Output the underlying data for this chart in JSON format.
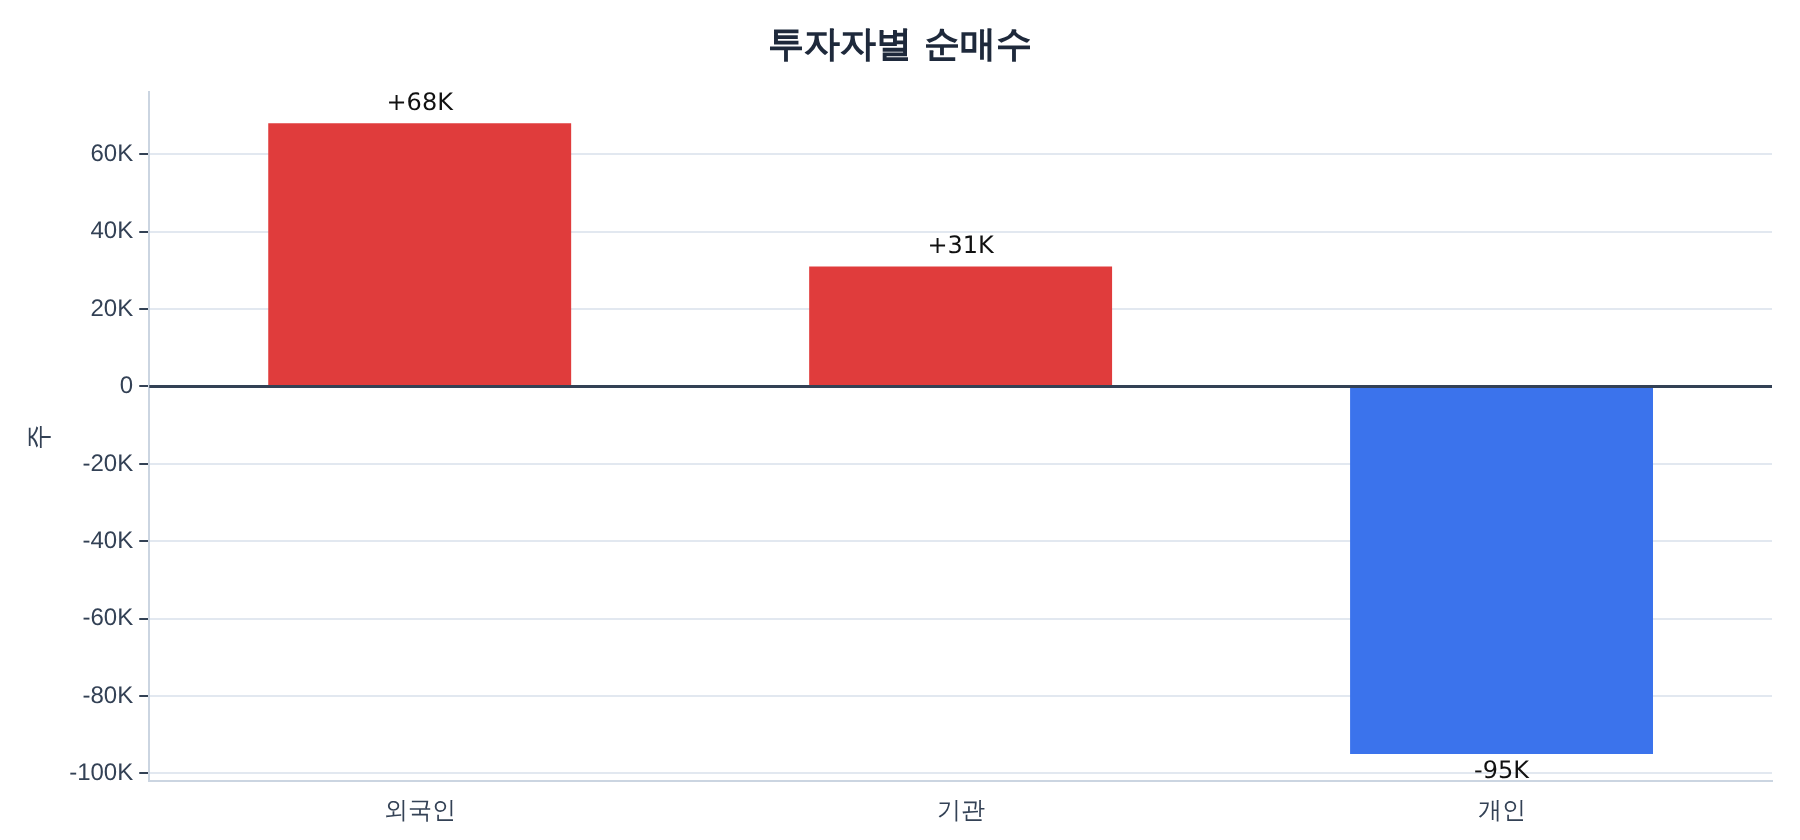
{
  "chart_data": {
    "type": "bar",
    "title": "투자자별 순매수",
    "ylabel": "주",
    "categories": [
      "외국인",
      "기관",
      "개인"
    ],
    "values": [
      68000,
      31000,
      -95000
    ],
    "colors": [
      "#e03c3c",
      "#e03c3c",
      "#3b73ec"
    ],
    "value_labels": [
      "+68K",
      "+31K",
      "-95K"
    ],
    "ylim": [
      -102000,
      76000
    ],
    "yticks": [
      {
        "value": -100000,
        "label": "-100K"
      },
      {
        "value": -80000,
        "label": "-80K"
      },
      {
        "value": -60000,
        "label": "-60K"
      },
      {
        "value": -40000,
        "label": "-40K"
      },
      {
        "value": -20000,
        "label": "-20K"
      },
      0,
      {
        "value": 20000,
        "label": "20K"
      },
      {
        "value": 40000,
        "label": "40K"
      },
      {
        "value": 60000,
        "label": "60K"
      }
    ],
    "ref_lines": [
      {
        "axis": "y",
        "value": 0,
        "color": "#334155"
      }
    ],
    "grid": "y",
    "legend": false
  }
}
